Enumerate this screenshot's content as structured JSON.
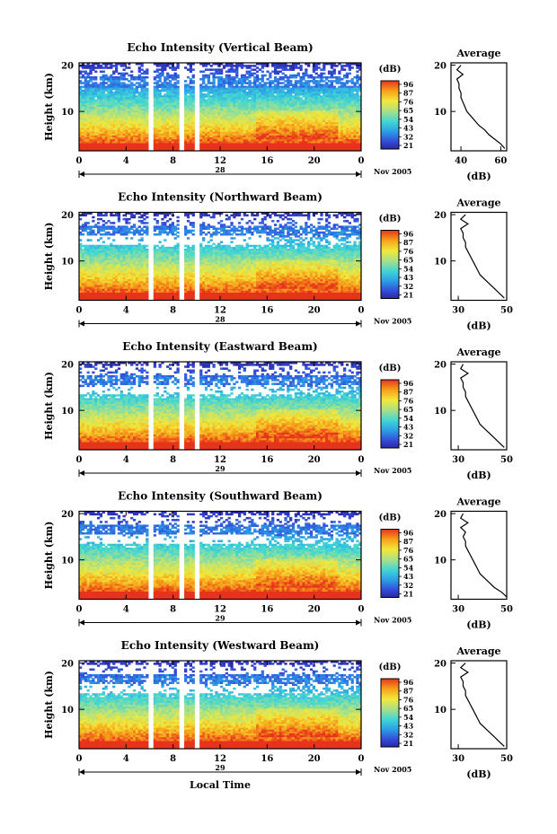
{
  "figure": {
    "xlabel": "Local Time",
    "colorbar_unit": "(dB)",
    "month_year": "Nov 2005"
  },
  "chart_data": [
    {
      "type": "heatmap",
      "title": "Echo Intensity (Vertical Beam)",
      "ylabel": "Height (km)",
      "xlim": [
        0,
        24
      ],
      "ylim": [
        1.5,
        20.5
      ],
      "xticks": [
        "0",
        "4",
        "8",
        "12",
        "16",
        "20",
        "0"
      ],
      "yticks": [
        "10",
        "20"
      ],
      "date": "28",
      "colorbar": [
        "96",
        "87",
        "76",
        "65",
        "54",
        "43",
        "32",
        "21"
      ],
      "gaps": [
        [
          6.0,
          6.4
        ],
        [
          8.6,
          8.9
        ],
        [
          9.9,
          10.3
        ]
      ],
      "profile": {
        "title": "Average",
        "xlabel": "(dB)",
        "xticks": [
          "40",
          "60"
        ],
        "xlim": [
          35,
          63
        ],
        "heights": [
          2,
          3,
          4,
          5,
          6,
          7,
          8,
          9,
          10,
          11,
          12,
          13,
          14,
          15,
          16,
          17,
          18,
          19,
          20
        ],
        "values": [
          62,
          60,
          57,
          54,
          52,
          49,
          47,
          45,
          43,
          42,
          41,
          40,
          40,
          39,
          39,
          38,
          41,
          38,
          40
        ]
      }
    },
    {
      "type": "heatmap",
      "title": "Echo Intensity (Northward Beam)",
      "ylabel": "Height (km)",
      "xlim": [
        0,
        24
      ],
      "ylim": [
        1.5,
        20.5
      ],
      "xticks": [
        "0",
        "4",
        "8",
        "12",
        "16",
        "20",
        "0"
      ],
      "yticks": [
        "10",
        "20"
      ],
      "date": "28",
      "colorbar": [
        "96",
        "87",
        "76",
        "65",
        "54",
        "43",
        "32",
        "21"
      ],
      "gaps": [
        [
          6.0,
          6.4
        ],
        [
          8.6,
          8.9
        ],
        [
          9.9,
          10.3
        ]
      ],
      "profile": {
        "title": "Average",
        "xlabel": "(dB)",
        "xticks": [
          "30",
          "50"
        ],
        "xlim": [
          27,
          50
        ],
        "heights": [
          2,
          3,
          4,
          5,
          6,
          7,
          8,
          9,
          10,
          11,
          12,
          13,
          14,
          15,
          16,
          17,
          18,
          19,
          20
        ],
        "values": [
          49,
          47,
          45,
          43,
          41,
          39,
          38,
          37,
          36,
          35,
          34,
          33,
          33,
          32,
          32,
          31,
          34,
          31,
          33
        ]
      }
    },
    {
      "type": "heatmap",
      "title": "Echo Intensity (Eastward Beam)",
      "ylabel": "Height (km)",
      "xlim": [
        0,
        24
      ],
      "ylim": [
        1.5,
        20.5
      ],
      "xticks": [
        "0",
        "4",
        "8",
        "12",
        "16",
        "20",
        "0"
      ],
      "yticks": [
        "10",
        "20"
      ],
      "date": "29",
      "colorbar": [
        "96",
        "87",
        "76",
        "65",
        "54",
        "43",
        "32",
        "21"
      ],
      "gaps": [
        [
          6.0,
          6.4
        ],
        [
          8.6,
          8.9
        ],
        [
          9.9,
          10.3
        ]
      ],
      "profile": {
        "title": "Average",
        "xlabel": "(dB)",
        "xticks": [
          "30",
          "50"
        ],
        "xlim": [
          27,
          50
        ],
        "heights": [
          2,
          3,
          4,
          5,
          6,
          7,
          8,
          9,
          10,
          11,
          12,
          13,
          14,
          15,
          16,
          17,
          18,
          19,
          20
        ],
        "values": [
          49,
          47,
          45,
          43,
          41,
          39,
          38,
          37,
          36,
          35,
          34,
          33,
          33,
          32,
          32,
          31,
          34,
          31,
          32
        ]
      }
    },
    {
      "type": "heatmap",
      "title": "Echo Intensity (Southward Beam)",
      "ylabel": "Height (km)",
      "xlim": [
        0,
        24
      ],
      "ylim": [
        1.5,
        20.5
      ],
      "xticks": [
        "0",
        "4",
        "8",
        "12",
        "16",
        "20",
        "0"
      ],
      "yticks": [
        "10",
        "20"
      ],
      "date": "29",
      "colorbar": [
        "96",
        "87",
        "76",
        "65",
        "54",
        "43",
        "32",
        "21"
      ],
      "gaps": [
        [
          6.0,
          6.4
        ],
        [
          8.6,
          8.9
        ],
        [
          9.9,
          10.3
        ]
      ],
      "profile": {
        "title": "Average",
        "xlabel": "(dB)",
        "xticks": [
          "30",
          "50"
        ],
        "xlim": [
          27,
          50
        ],
        "heights": [
          2,
          3,
          4,
          5,
          6,
          7,
          8,
          9,
          10,
          11,
          12,
          13,
          14,
          15,
          16,
          17,
          18,
          19,
          20
        ],
        "values": [
          50,
          48,
          45,
          43,
          41,
          39,
          38,
          37,
          36,
          35,
          34,
          33,
          33,
          32,
          33,
          31,
          34,
          31,
          32
        ]
      }
    },
    {
      "type": "heatmap",
      "title": "Echo Intensity (Westward Beam)",
      "ylabel": "Height (km)",
      "xlim": [
        0,
        24
      ],
      "ylim": [
        1.5,
        20.5
      ],
      "xticks": [
        "0",
        "4",
        "8",
        "12",
        "16",
        "20",
        "0"
      ],
      "yticks": [
        "10",
        "20"
      ],
      "date": "29",
      "colorbar": [
        "96",
        "87",
        "76",
        "65",
        "54",
        "43",
        "32",
        "21"
      ],
      "gaps": [
        [
          6.0,
          6.4
        ],
        [
          8.6,
          8.9
        ],
        [
          9.9,
          10.3
        ]
      ],
      "profile": {
        "title": "Average",
        "xlabel": "(dB)",
        "xticks": [
          "30",
          "50"
        ],
        "xlim": [
          27,
          50
        ],
        "heights": [
          2,
          3,
          4,
          5,
          6,
          7,
          8,
          9,
          10,
          11,
          12,
          13,
          14,
          15,
          16,
          17,
          18,
          19,
          20
        ],
        "values": [
          49,
          47,
          45,
          43,
          41,
          39,
          38,
          37,
          36,
          35,
          34,
          33,
          33,
          32,
          32,
          31,
          34,
          31,
          33
        ]
      }
    }
  ]
}
